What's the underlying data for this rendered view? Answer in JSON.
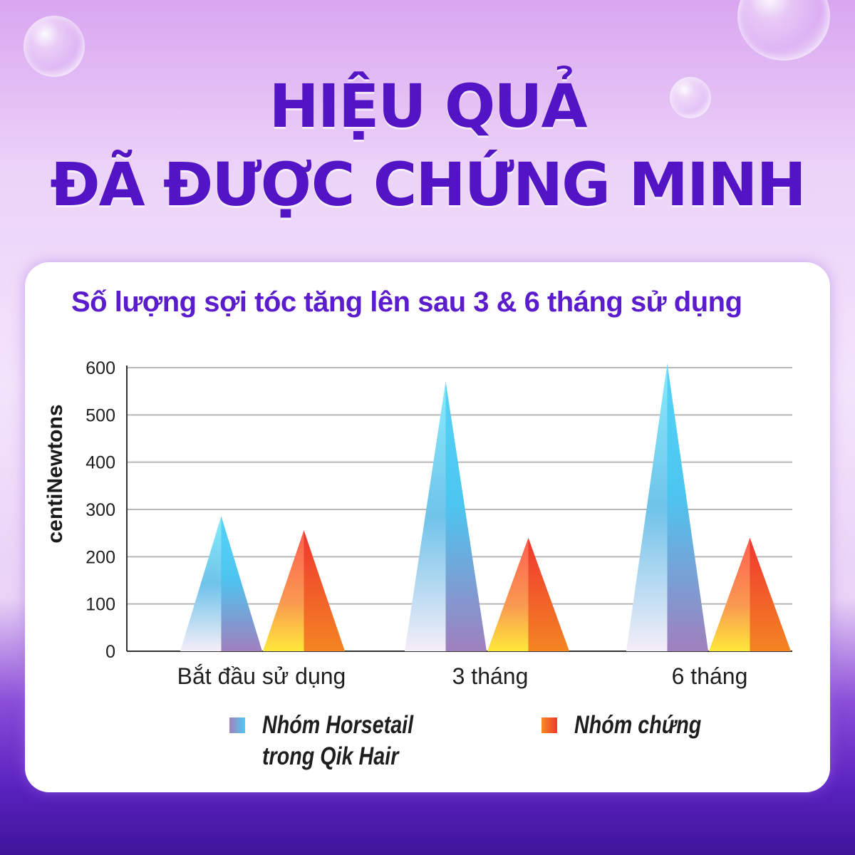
{
  "title": {
    "line1": "HIỆU QUẢ",
    "line2": "ĐÃ ĐƯỢC CHỨNG MINH"
  },
  "colors": {
    "title": "#5214c4",
    "horsetail_top": "#4ec8f2",
    "horsetail_bottom": "#a482be",
    "control_top": "#ee3a30",
    "control_bottom": "#f58a20"
  },
  "chart_data": {
    "type": "bar",
    "title": "Số lượng sợi tóc tăng lên sau 3 & 6 tháng sử dụng",
    "ylabel": "centiNewtons",
    "xlabel": "",
    "ylim": [
      0,
      600
    ],
    "yticks": [
      "0",
      "100",
      "200",
      "300",
      "400",
      "500",
      "600"
    ],
    "grid": true,
    "categories": [
      "Bắt đầu sử dụng",
      "3 tháng",
      "6 tháng"
    ],
    "series": [
      {
        "name": "Nhóm Horsetail trong Qik Hair",
        "values": [
          286,
          571,
          609
        ]
      },
      {
        "name": "Nhóm chứng",
        "values": [
          256,
          240,
          240
        ]
      }
    ],
    "legend": {
      "placement": "bottom",
      "items": [
        {
          "line1": "Nhóm Horsetail",
          "line2": "trong Qik Hair"
        },
        {
          "line1": "Nhóm chứng"
        }
      ]
    }
  }
}
